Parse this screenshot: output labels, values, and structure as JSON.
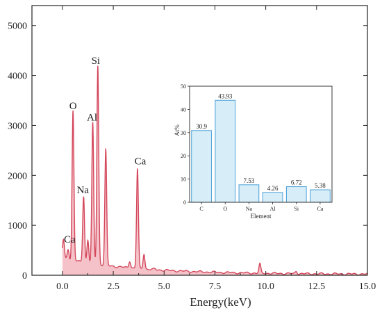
{
  "chart_data": [
    {
      "type": "area",
      "title": "",
      "xlabel": "Energy(keV)",
      "ylabel": "",
      "xlim": [
        -1.5,
        15.0
      ],
      "ylim": [
        0,
        5400
      ],
      "x_ticks": [
        "0.0",
        "2.5",
        "5.0",
        "7.5",
        "10.0",
        "12.5",
        "15.0"
      ],
      "x_tick_values": [
        0,
        2.5,
        5,
        7.5,
        10,
        12.5,
        15
      ],
      "y_ticks": [
        "0",
        "1000",
        "2000",
        "3000",
        "4000",
        "5000"
      ],
      "y_tick_values": [
        0,
        1000,
        2000,
        3000,
        4000,
        5000
      ],
      "colors": {
        "line": "#d4475c",
        "fill": "#f4c2c8"
      },
      "peaks": [
        {
          "label": "Ca",
          "energy": 0.05,
          "counts": 600
        },
        {
          "label": "",
          "energy": 0.28,
          "counts": 420
        },
        {
          "label": "O",
          "energy": 0.52,
          "counts": 3190
        },
        {
          "label": "Na",
          "energy": 1.04,
          "counts": 1500
        },
        {
          "label": "",
          "energy": 1.25,
          "counts": 620
        },
        {
          "label": "Al",
          "energy": 1.49,
          "counts": 2960
        },
        {
          "label": "Si",
          "energy": 1.74,
          "counts": 4120
        },
        {
          "label": "",
          "energy": 2.13,
          "counts": 2450
        },
        {
          "label": "",
          "energy": 3.31,
          "counts": 230
        },
        {
          "label": "Ca",
          "energy": 3.69,
          "counts": 2080
        },
        {
          "label": "",
          "energy": 4.01,
          "counts": 380
        },
        {
          "label": "",
          "energy": 4.55,
          "counts": 80
        },
        {
          "label": "",
          "energy": 9.71,
          "counts": 200
        },
        {
          "label": "",
          "energy": 11.5,
          "counts": 60
        }
      ],
      "background": {
        "start_counts": 320,
        "decay_per_keV": 0.27
      }
    },
    {
      "type": "bar",
      "title": "",
      "xlabel": "Element",
      "ylabel": "At%",
      "categories": [
        "C",
        "O",
        "Na",
        "Al",
        "Si",
        "Ca"
      ],
      "values": [
        30.9,
        43.93,
        7.53,
        4.26,
        6.72,
        5.38
      ],
      "value_labels": [
        "30.9",
        "43.93",
        "7.53",
        "4.26",
        "6.72",
        "5.38"
      ],
      "ylim": [
        0,
        50
      ],
      "y_ticks": [
        "0",
        "10",
        "20",
        "30",
        "40",
        "50"
      ],
      "y_tick_values": [
        0,
        10,
        20,
        30,
        40,
        50
      ],
      "colors": {
        "bar_fill": "#d7eef8",
        "bar_stroke": "#4a9fd8"
      }
    }
  ]
}
